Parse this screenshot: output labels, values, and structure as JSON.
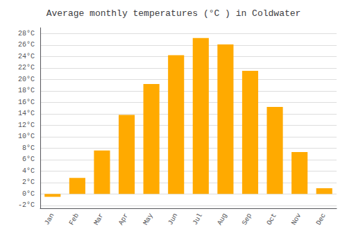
{
  "chart_data": {
    "type": "bar",
    "title": "Average monthly temperatures (°C ) in Coldwater",
    "categories": [
      "Jan",
      "Feb",
      "Mar",
      "Apr",
      "May",
      "Jun",
      "Jul",
      "Aug",
      "Sep",
      "Oct",
      "Nov",
      "Dec"
    ],
    "values": [
      -0.5,
      2.8,
      7.6,
      13.8,
      19.2,
      24.2,
      27.2,
      26.1,
      21.5,
      15.2,
      7.3,
      1.0
    ],
    "color": "#FFAA00",
    "ylim": [
      -2.5,
      29
    ],
    "yticks": [
      {
        "value": -2,
        "label": "-2°C"
      },
      {
        "value": 0,
        "label": "0°C"
      },
      {
        "value": 2,
        "label": "2°C"
      },
      {
        "value": 4,
        "label": "4°C"
      },
      {
        "value": 6,
        "label": "6°C"
      },
      {
        "value": 8,
        "label": "8°C"
      },
      {
        "value": 10,
        "label": "10°C"
      },
      {
        "value": 12,
        "label": "12°C"
      },
      {
        "value": 14,
        "label": "14°C"
      },
      {
        "value": 16,
        "label": "16°C"
      },
      {
        "value": 18,
        "label": "18°C"
      },
      {
        "value": 20,
        "label": "20°C"
      },
      {
        "value": 22,
        "label": "22°C"
      },
      {
        "value": 24,
        "label": "24°C"
      },
      {
        "value": 26,
        "label": "26°C"
      },
      {
        "value": 28,
        "label": "28°C"
      }
    ],
    "grid": true
  }
}
